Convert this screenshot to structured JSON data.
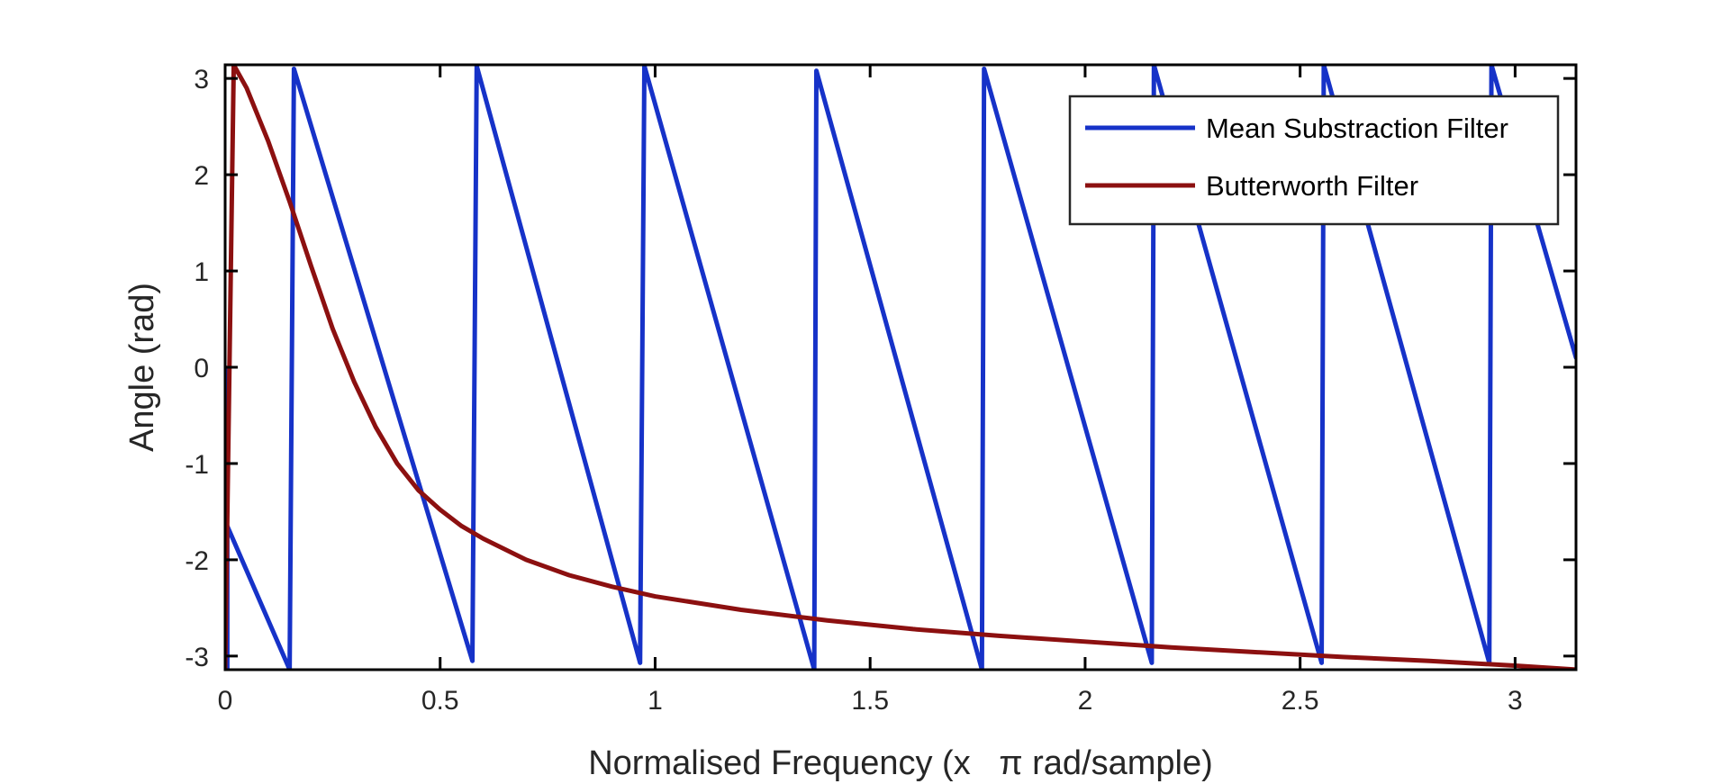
{
  "chart_data": {
    "type": "line",
    "xlabel": "Normalised Frequency (x   π rad/sample)",
    "ylabel": "Angle (rad)",
    "xlim": [
      0,
      3.1416
    ],
    "ylim": [
      -3.1416,
      3.1416
    ],
    "x_ticks": [
      "0",
      "0.5",
      "1",
      "1.5",
      "2",
      "2.5",
      "3"
    ],
    "y_ticks": [
      "3",
      "2",
      "1",
      "0",
      "-1",
      "-2",
      "-3"
    ],
    "x_tick_values": [
      0,
      0.5,
      1,
      1.5,
      2,
      2.5,
      3
    ],
    "y_tick_values": [
      3,
      2,
      1,
      0,
      -1,
      -2,
      -3
    ],
    "grid": false,
    "box": true,
    "legend": {
      "position": "top-right"
    },
    "series": [
      {
        "name": "Mean Substraction Filter",
        "color": "#1632c8",
        "x": [
          0,
          0.005,
          0.005,
          0.15,
          0.15,
          0.16,
          0.16,
          0.575,
          0.575,
          0.585,
          0.585,
          0.965,
          0.965,
          0.975,
          0.975,
          1.37,
          1.37,
          1.375,
          1.375,
          1.76,
          1.76,
          1.765,
          1.765,
          2.155,
          2.155,
          2.16,
          2.16,
          2.55,
          2.55,
          2.555,
          2.555,
          2.94,
          2.94,
          2.945,
          2.945,
          3.1416
        ],
        "y": [
          0.0,
          -3.14,
          -1.65,
          -3.14,
          -3.14,
          3.1,
          3.1,
          -3.05,
          -3.05,
          3.13,
          3.13,
          -3.07,
          -3.07,
          3.13,
          3.13,
          -3.14,
          -3.14,
          3.08,
          3.08,
          -3.14,
          -3.14,
          3.1,
          3.1,
          -3.07,
          -3.07,
          3.14,
          3.14,
          -3.07,
          -3.07,
          3.14,
          3.14,
          -3.07,
          -3.07,
          3.14,
          3.14,
          0.1
        ]
      },
      {
        "name": "Butterworth Filter",
        "color": "#8c1010",
        "x": [
          0,
          0.02,
          0.05,
          0.1,
          0.15,
          0.2,
          0.25,
          0.3,
          0.35,
          0.4,
          0.45,
          0.5,
          0.55,
          0.6,
          0.7,
          0.8,
          0.9,
          1.0,
          1.2,
          1.4,
          1.6,
          1.8,
          2.0,
          2.2,
          2.4,
          2.6,
          2.8,
          3.0,
          3.1416
        ],
        "y": [
          -3.14,
          3.14,
          2.9,
          2.35,
          1.72,
          1.05,
          0.4,
          -0.15,
          -0.62,
          -1.0,
          -1.28,
          -1.48,
          -1.65,
          -1.78,
          -2.0,
          -2.16,
          -2.28,
          -2.38,
          -2.52,
          -2.63,
          -2.72,
          -2.79,
          -2.85,
          -2.91,
          -2.96,
          -3.01,
          -3.05,
          -3.1,
          -3.14
        ]
      }
    ]
  }
}
